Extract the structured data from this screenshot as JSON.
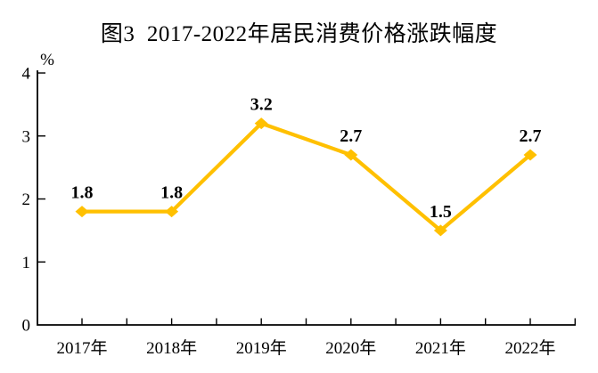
{
  "chart_data": {
    "type": "line",
    "title": "图3  2017-2022年居民消费价格涨跌幅度",
    "categories": [
      "2017年",
      "2018年",
      "2019年",
      "2020年",
      "2021年",
      "2022年"
    ],
    "values": [
      1.8,
      1.8,
      3.2,
      2.7,
      1.5,
      2.7
    ],
    "data_labels": [
      "1.8",
      "1.8",
      "3.2",
      "2.7",
      "1.5",
      "2.7"
    ],
    "xlabel": "",
    "ylabel": "%",
    "unit_label": "%",
    "ylim": [
      0,
      4
    ],
    "ytick_labels": [
      "0",
      "1",
      "2",
      "3",
      "4"
    ],
    "grid": false,
    "legend": "none",
    "line_color": "#FFC000",
    "marker_shape": "diamond",
    "marker_color": "#FFC000",
    "axis_color": "#000000",
    "label_color": "#000000"
  }
}
